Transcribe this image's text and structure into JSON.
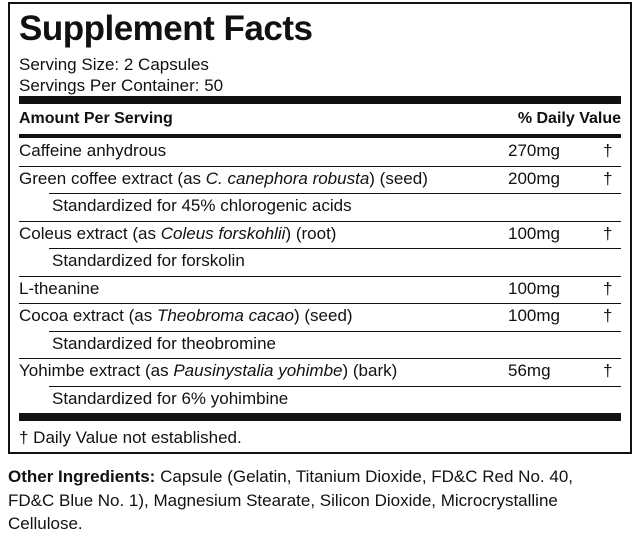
{
  "title": "Supplement Facts",
  "serving_size": "Serving Size: 2 Capsules",
  "servings_per_container": "Servings Per Container: 50",
  "table": {
    "header": [
      "Amount Per Serving",
      "% Daily Value"
    ],
    "rows": [
      {
        "name": [
          {
            "text": "Caffeine anhydrous"
          }
        ],
        "amount": "270mg",
        "dv": "†"
      },
      {
        "name": [
          {
            "text": "Green coffee extract (as "
          },
          {
            "text": "C. canephora robusta",
            "italic": true
          },
          {
            "text": ") (seed)"
          }
        ],
        "amount": "200mg",
        "dv": "†"
      },
      {
        "name": [
          {
            "text": "Standardized for 45% chlorogenic acids"
          }
        ],
        "indent": true
      },
      {
        "name": [
          {
            "text": "Coleus extract (as "
          },
          {
            "text": "Coleus forskohlii",
            "italic": true
          },
          {
            "text": ") (root)"
          }
        ],
        "amount": "100mg",
        "dv": "†"
      },
      {
        "name": [
          {
            "text": "Standardized for forskolin"
          }
        ],
        "indent": true
      },
      {
        "name": [
          {
            "text": "L-theanine"
          }
        ],
        "amount": "100mg",
        "dv": "†"
      },
      {
        "name": [
          {
            "text": "Cocoa extract (as "
          },
          {
            "text": "Theobroma cacao",
            "italic": true
          },
          {
            "text": ") (seed)"
          }
        ],
        "amount": "100mg",
        "dv": "†"
      },
      {
        "name": [
          {
            "text": "Standardized for theobromine"
          }
        ],
        "indent": true
      },
      {
        "name": [
          {
            "text": "Yohimbe extract (as "
          },
          {
            "text": "Pausinystalia yohimbe",
            "italic": true
          },
          {
            "text": ") (bark)"
          }
        ],
        "amount": "56mg",
        "dv": "†"
      },
      {
        "name": [
          {
            "text": "Standardized for 6% yohimbine"
          }
        ],
        "indent": true
      }
    ]
  },
  "footnote": "† Daily Value not established.",
  "other_ingredients": {
    "label": "Other Ingredients:",
    "text": "Capsule (Gelatin, Titanium Dioxide, FD&C Red No. 40, FD&C Blue No. 1), Magnesium Stearate, Silicon Dioxide, Microcrystalline Cellulose."
  }
}
